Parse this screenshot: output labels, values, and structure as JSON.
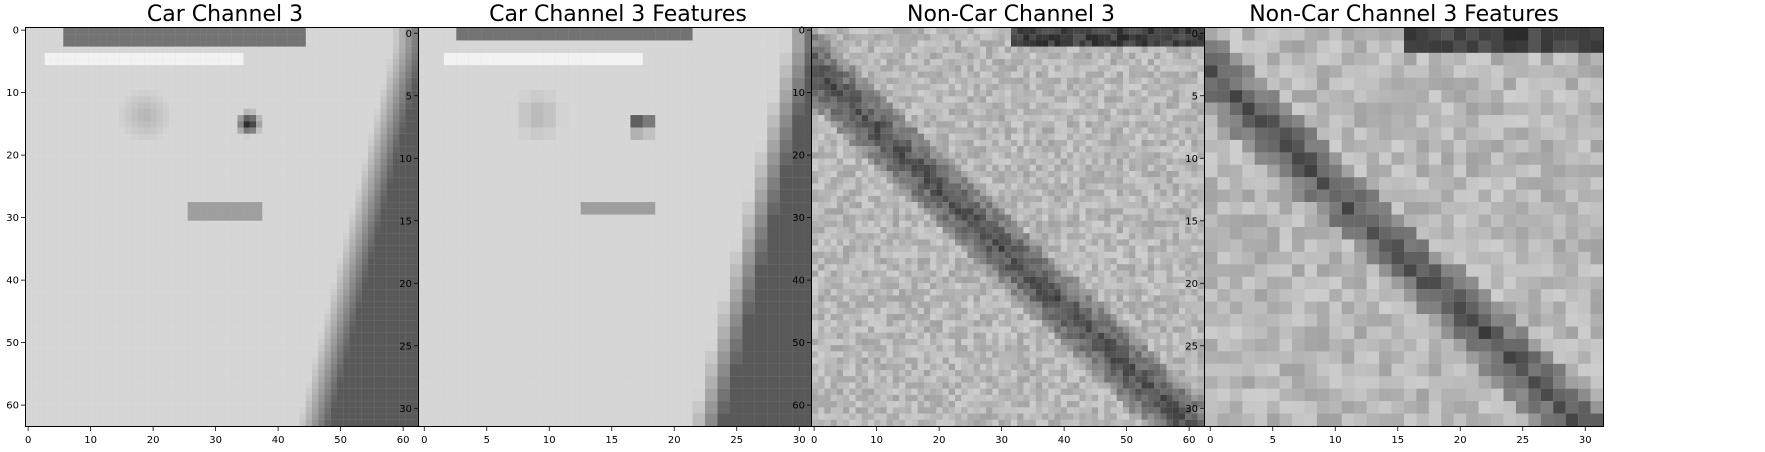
{
  "chart_data": [
    {
      "type": "heatmap",
      "title": "Car Channel 3",
      "grid_size": 64,
      "colormap": "gray",
      "xlim": [
        -0.5,
        63.5
      ],
      "ylim": [
        63.5,
        -0.5
      ],
      "xticks": [
        0,
        10,
        20,
        30,
        40,
        50,
        60
      ],
      "yticks": [
        0,
        10,
        20,
        30,
        40,
        50,
        60
      ],
      "xtick_labels": [
        "0",
        "10",
        "20",
        "30",
        "40",
        "50",
        "60"
      ],
      "ytick_labels": [
        "0",
        "10",
        "20",
        "30",
        "40",
        "50",
        "60"
      ],
      "description_values": "grayscale intensity 0-1 approximated per region",
      "regions": [
        {
          "shape": "base",
          "value": 0.84
        },
        {
          "shape": "band_h",
          "x0": 0.1,
          "x1": 0.7,
          "y0": 0.0,
          "y1": 0.04,
          "value": 0.45
        },
        {
          "shape": "band_h",
          "x0": 0.05,
          "x1": 0.55,
          "y0": 0.06,
          "y1": 0.1,
          "value": 0.95
        },
        {
          "shape": "blob",
          "cx": 0.56,
          "cy": 0.24,
          "r": 0.035,
          "value": 0.05
        },
        {
          "shape": "blob",
          "cx": 0.3,
          "cy": 0.22,
          "r": 0.07,
          "value": 0.7
        },
        {
          "shape": "band_h",
          "x0": 0.4,
          "x1": 0.6,
          "y0": 0.43,
          "y1": 0.48,
          "value": 0.62
        },
        {
          "shape": "edge_right",
          "value": 0.35
        }
      ]
    },
    {
      "type": "heatmap",
      "title": "Car Channel 3 Features",
      "grid_size": 32,
      "colormap": "gray",
      "xlim": [
        -0.5,
        31.5
      ],
      "ylim": [
        31.5,
        -0.5
      ],
      "xticks": [
        0,
        5,
        10,
        15,
        20,
        25,
        30
      ],
      "yticks": [
        0,
        5,
        10,
        15,
        20,
        25,
        30
      ],
      "xtick_labels": [
        "0",
        "5",
        "10",
        "15",
        "20",
        "25",
        "30"
      ],
      "ytick_labels": [
        "0",
        "5",
        "10",
        "15",
        "20",
        "25",
        "30"
      ],
      "regions": [
        {
          "shape": "base",
          "value": 0.84
        },
        {
          "shape": "band_h",
          "x0": 0.1,
          "x1": 0.7,
          "y0": 0.0,
          "y1": 0.04,
          "value": 0.45
        },
        {
          "shape": "band_h",
          "x0": 0.05,
          "x1": 0.55,
          "y0": 0.06,
          "y1": 0.1,
          "value": 0.95
        },
        {
          "shape": "blob",
          "cx": 0.56,
          "cy": 0.24,
          "r": 0.035,
          "value": 0.05
        },
        {
          "shape": "blob",
          "cx": 0.3,
          "cy": 0.22,
          "r": 0.07,
          "value": 0.7
        },
        {
          "shape": "band_h",
          "x0": 0.4,
          "x1": 0.6,
          "y0": 0.43,
          "y1": 0.48,
          "value": 0.62
        },
        {
          "shape": "edge_right",
          "value": 0.35
        }
      ]
    },
    {
      "type": "heatmap",
      "title": "Non-Car Channel 3",
      "grid_size": 64,
      "colormap": "gray",
      "xlim": [
        -0.5,
        63.5
      ],
      "ylim": [
        63.5,
        -0.5
      ],
      "xticks": [
        0,
        10,
        20,
        30,
        40,
        50,
        60
      ],
      "yticks": [
        0,
        10,
        20,
        30,
        40,
        50,
        60
      ],
      "xtick_labels": [
        "0",
        "10",
        "20",
        "30",
        "40",
        "50",
        "60"
      ],
      "ytick_labels": [
        "0",
        "10",
        "20",
        "30",
        "40",
        "50",
        "60"
      ],
      "regions": [
        {
          "shape": "base",
          "value": 0.72
        },
        {
          "shape": "band_h",
          "x0": 0.5,
          "x1": 1.0,
          "y0": 0.0,
          "y1": 0.05,
          "value": 0.25
        },
        {
          "shape": "diagonal_dark",
          "value": 0.3
        },
        {
          "shape": "noise",
          "amplitude": 0.18
        }
      ]
    },
    {
      "type": "heatmap",
      "title": "Non-Car Channel 3 Features",
      "grid_size": 32,
      "colormap": "gray",
      "xlim": [
        -0.5,
        31.5
      ],
      "ylim": [
        31.5,
        -0.5
      ],
      "xticks": [
        0,
        5,
        10,
        15,
        20,
        25,
        30
      ],
      "yticks": [
        0,
        5,
        10,
        15,
        20,
        25,
        30
      ],
      "xtick_labels": [
        "0",
        "5",
        "10",
        "15",
        "20",
        "25",
        "30"
      ],
      "ytick_labels": [
        "0",
        "5",
        "10",
        "15",
        "20",
        "25",
        "30"
      ],
      "regions": [
        {
          "shape": "base",
          "value": 0.72
        },
        {
          "shape": "band_h",
          "x0": 0.5,
          "x1": 1.0,
          "y0": 0.0,
          "y1": 0.05,
          "value": 0.25
        },
        {
          "shape": "diagonal_dark",
          "value": 0.3
        },
        {
          "shape": "noise",
          "amplitude": 0.18
        }
      ]
    }
  ]
}
